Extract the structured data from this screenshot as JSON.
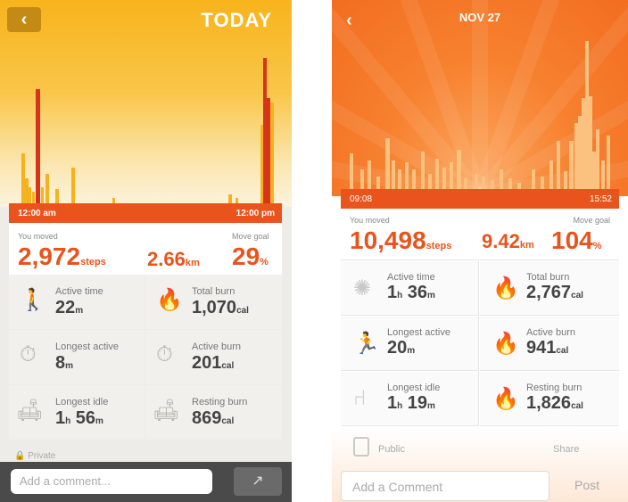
{
  "left": {
    "title": "TODAY",
    "back_icon": "chevron-left-icon",
    "time_start": "12:00 am",
    "time_end": "12:00 pm",
    "moved_label": "You moved",
    "steps": "2,972",
    "steps_unit": "steps",
    "distance": "2.66",
    "distance_unit": "km",
    "goal_label": "Move goal",
    "goal": "29",
    "goal_unit": "%",
    "stats": [
      {
        "label": "Active time",
        "value": "22",
        "unit": "m",
        "icon": "walking-person-icon"
      },
      {
        "label": "Total burn",
        "value": "1,070",
        "unit": "cal",
        "icon": "flame-icon"
      },
      {
        "label": "Longest active",
        "value": "8",
        "unit": "m",
        "icon": "walking-timer-icon"
      },
      {
        "label": "Active burn",
        "value": "201",
        "unit": "cal",
        "icon": "active-burn-icon"
      },
      {
        "label": "Longest idle",
        "value_h": "1",
        "unit_h": "h",
        "value_m": "56",
        "unit_m": "m",
        "icon": "sofa-timer-icon"
      },
      {
        "label": "Resting burn",
        "value": "869",
        "unit": "cal",
        "icon": "sofa-flame-icon"
      }
    ],
    "privacy": "Private",
    "comment_placeholder": "Add a comment...",
    "share_icon": "share-icon",
    "accent": "#e8541c",
    "hero_color": "#f7b41c"
  },
  "right": {
    "title": "NOV 27",
    "back_icon": "chevron-left-icon",
    "time_start": "09:08",
    "time_end": "15:52",
    "moved_label": "You moved",
    "steps": "10,498",
    "steps_unit": "steps",
    "distance": "9.42",
    "distance_unit": "km",
    "goal_label": "Move goal",
    "goal": "104",
    "goal_unit": "%",
    "stats": [
      {
        "label": "Active time",
        "value_h": "1",
        "unit_h": "h",
        "value_m": "36",
        "unit_m": "m",
        "icon": "sparkle-icon"
      },
      {
        "label": "Total burn",
        "value": "2,767",
        "unit": "cal",
        "icon": "flame-icon"
      },
      {
        "label": "Longest active",
        "value": "20",
        "unit": "m",
        "icon": "running-person-icon"
      },
      {
        "label": "Active burn",
        "value": "941",
        "unit": "cal",
        "icon": "flame-icon"
      },
      {
        "label": "Longest idle",
        "value_h": "1",
        "unit_h": "h",
        "value_m": "19",
        "unit_m": "m",
        "icon": "chair-icon"
      },
      {
        "label": "Resting burn",
        "value": "1,826",
        "unit": "cal",
        "icon": "flame-icon"
      }
    ],
    "privacy": "Public",
    "share": "Share",
    "comment_placeholder": "Add a Comment",
    "post": "Post",
    "accent": "#e8541c",
    "hero_color": "#f7812f"
  }
}
